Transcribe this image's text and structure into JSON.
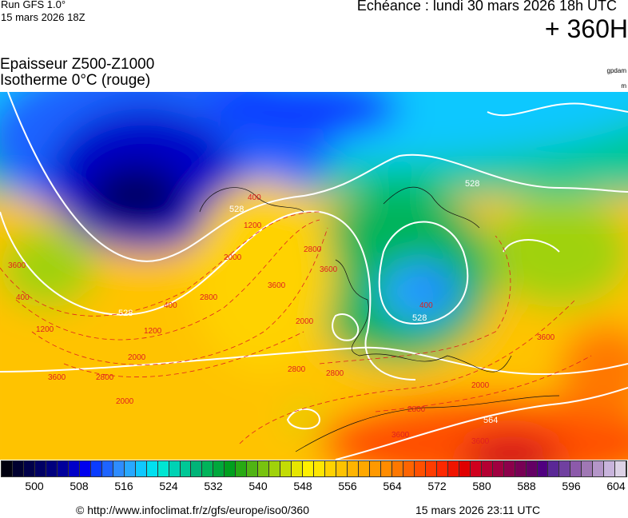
{
  "header": {
    "run": "Run GFS 1.0°",
    "run_date": "15 mars 2026 18Z",
    "valid": "Echéance : lundi 30 mars 2026 18h UTC",
    "lead": "+ 360H",
    "title1": "Epaisseur Z500-Z1000",
    "title2": "Isotherme 0°C (rouge)",
    "unit1": "gpdam",
    "unit2": "m"
  },
  "map": {
    "thickness_labels": [
      "528",
      "528",
      "528",
      "528",
      "564"
    ],
    "isotherm_labels": [
      "400",
      "1200",
      "2000",
      "2800",
      "3600",
      "400",
      "1200",
      "2000",
      "2800",
      "3600",
      "2000",
      "2800",
      "3600",
      "400",
      "1200",
      "2000",
      "2800",
      "3600",
      "400",
      "2000",
      "3600",
      "2800",
      "2800",
      "3600",
      "3600"
    ],
    "contour_color": "#ffffff",
    "isotherm_color": "#e02020"
  },
  "colorbar": {
    "ticks": [
      "500",
      "508",
      "516",
      "524",
      "532",
      "540",
      "548",
      "556",
      "564",
      "572",
      "580",
      "588",
      "596",
      "604"
    ],
    "colors": [
      "#000010",
      "#000030",
      "#00004a",
      "#000064",
      "#00007e",
      "#00009c",
      "#0000c8",
      "#0000ee",
      "#0a3cff",
      "#1e64ff",
      "#2e8cff",
      "#28a8ff",
      "#10c8ff",
      "#00e0f0",
      "#00e6d2",
      "#00d2b4",
      "#00c896",
      "#00b478",
      "#00b45a",
      "#00a83c",
      "#00a01e",
      "#28aa14",
      "#50b414",
      "#78c30f",
      "#a0d20a",
      "#c3dc05",
      "#e6e600",
      "#fff000",
      "#ffe600",
      "#ffd200",
      "#ffc300",
      "#ffb400",
      "#ffa800",
      "#ff9900",
      "#ff8c00",
      "#ff7800",
      "#ff6400",
      "#ff5000",
      "#ff3c00",
      "#ff2800",
      "#f01400",
      "#e00000",
      "#d0001e",
      "#b40032",
      "#a00040",
      "#8c004b",
      "#780055",
      "#640064",
      "#500080",
      "#5a2896",
      "#7040a0",
      "#8c5aaa",
      "#a078b4",
      "#b496c8",
      "#c8b4dc",
      "#dcd2e6"
    ]
  },
  "footer": {
    "copyright": "© http://www.infoclimat.fr/z/gfs/europe/iso0/360",
    "generated": "15 mars 2026 23:11 UTC"
  }
}
